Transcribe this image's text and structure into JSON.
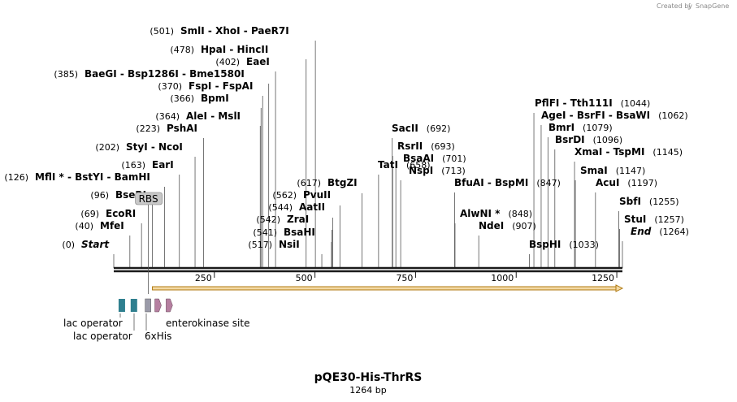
{
  "credit": {
    "prefix": "Created by",
    "brand": "SnapGene"
  },
  "sequence": {
    "name": "pQE30-His-ThrRS",
    "length_label": "1264 bp",
    "length": 1264
  },
  "colors": {
    "backbone": "#1a1a1a",
    "orf_fill": "#f3d9a4",
    "orf_stroke": "#b07a10",
    "lac_operator": "#2f7f8f",
    "his_tag": "#9a9aa8",
    "enterokinase": "#b57fa0",
    "rbs_fill": "#c8c8c8",
    "leader": "#555555"
  },
  "axis": {
    "ticks": [
      250,
      500,
      750,
      1000,
      1250
    ]
  },
  "features": [
    {
      "name": "lac operator",
      "label": "lac operator",
      "start": 12,
      "end": 28,
      "type": "lac_operator"
    },
    {
      "name": "lac operator",
      "label": "lac operator",
      "start": 42,
      "end": 58,
      "type": "lac_operator"
    },
    {
      "name": "6xHis",
      "label": "6xHis",
      "start": 78,
      "end": 90,
      "type": "his_tag"
    },
    {
      "name": "RBS",
      "label": "RBS",
      "start": 82,
      "end": 90,
      "type": "rbs"
    },
    {
      "name": "ORF",
      "label": "",
      "start": 96,
      "end": 1264,
      "type": "orf"
    },
    {
      "name": "enterokinase site",
      "label": "",
      "start": 102,
      "end": 112,
      "type": "enterokinase"
    },
    {
      "name": "enterokinase site",
      "label": "enterokinase site",
      "start": 130,
      "end": 140,
      "type": "enterokinase"
    }
  ],
  "sites": [
    {
      "parts": [
        {
          "t": "Start",
          "i": true
        }
      ],
      "pos_text": "(0)",
      "pos": 0,
      "before": true
    },
    {
      "parts": [
        {
          "t": "MfeI"
        }
      ],
      "pos_text": "(40)",
      "pos": 40,
      "before": true
    },
    {
      "parts": [
        {
          "t": "EcoRI"
        }
      ],
      "pos_text": "(69)",
      "pos": 69,
      "before": true
    },
    {
      "parts": [
        {
          "t": "BseRI"
        }
      ],
      "pos_text": "(96)",
      "pos": 96,
      "before": true
    },
    {
      "parts": [
        {
          "t": "MflI *"
        },
        {
          "t": " - "
        },
        {
          "t": "BstYI"
        },
        {
          "t": " - "
        },
        {
          "t": "BamHI"
        }
      ],
      "pos_text": "(126)",
      "pos": 126,
      "before": true
    },
    {
      "parts": [
        {
          "t": "EarI"
        }
      ],
      "pos_text": "(163)",
      "pos": 163,
      "before": true
    },
    {
      "parts": [
        {
          "t": "StyI"
        },
        {
          "t": " - "
        },
        {
          "t": "NcoI"
        }
      ],
      "pos_text": "(202)",
      "pos": 202,
      "before": true
    },
    {
      "parts": [
        {
          "t": "PshAI"
        }
      ],
      "pos_text": "(223)",
      "pos": 223,
      "before": true
    },
    {
      "parts": [
        {
          "t": "AleI"
        },
        {
          "t": " - "
        },
        {
          "t": "MslI"
        }
      ],
      "pos_text": "(364)",
      "pos": 364,
      "before": true
    },
    {
      "parts": [
        {
          "t": "BpmI"
        }
      ],
      "pos_text": "(366)",
      "pos": 366,
      "before": true
    },
    {
      "parts": [
        {
          "t": "FspI"
        },
        {
          "t": " - "
        },
        {
          "t": "FspAI"
        }
      ],
      "pos_text": "(370)",
      "pos": 370,
      "before": true
    },
    {
      "parts": [
        {
          "t": "BaeGI"
        },
        {
          "t": " - "
        },
        {
          "t": "Bsp1286I"
        },
        {
          "t": " - "
        },
        {
          "t": "Bme1580I"
        }
      ],
      "pos_text": "(385)",
      "pos": 385,
      "before": true
    },
    {
      "parts": [
        {
          "t": "EaeI"
        }
      ],
      "pos_text": "(402)",
      "pos": 402,
      "before": true
    },
    {
      "parts": [
        {
          "t": "HpaI"
        },
        {
          "t": " - "
        },
        {
          "t": "HincII"
        }
      ],
      "pos_text": "(478)",
      "pos": 478,
      "before": true
    },
    {
      "parts": [
        {
          "t": "SmlI"
        },
        {
          "t": " - "
        },
        {
          "t": "XhoI"
        },
        {
          "t": " - "
        },
        {
          "t": "PaeR7I"
        }
      ],
      "pos_text": "(501)",
      "pos": 501,
      "before": true
    },
    {
      "parts": [
        {
          "t": "NsiI"
        }
      ],
      "pos_text": "(517)",
      "pos": 517,
      "before": true
    },
    {
      "parts": [
        {
          "t": "BsaHI"
        }
      ],
      "pos_text": "(541)",
      "pos": 541,
      "before": true
    },
    {
      "parts": [
        {
          "t": "ZraI"
        }
      ],
      "pos_text": "(542)",
      "pos": 542,
      "before": true
    },
    {
      "parts": [
        {
          "t": "AatII"
        }
      ],
      "pos_text": "(544)",
      "pos": 544,
      "before": true
    },
    {
      "parts": [
        {
          "t": "PvuII"
        }
      ],
      "pos_text": "(562)",
      "pos": 562,
      "before": true
    },
    {
      "parts": [
        {
          "t": "BtgZI"
        }
      ],
      "pos_text": "(617)",
      "pos": 617,
      "before": true
    },
    {
      "parts": [
        {
          "t": "TatI"
        }
      ],
      "pos_text": "(658)",
      "pos": 658,
      "before": false
    },
    {
      "parts": [
        {
          "t": "SacII"
        }
      ],
      "pos_text": "(692)",
      "pos": 692,
      "before": false
    },
    {
      "parts": [
        {
          "t": "RsrII"
        }
      ],
      "pos_text": "(693)",
      "pos": 693,
      "before": false
    },
    {
      "parts": [
        {
          "t": "BsaAI"
        }
      ],
      "pos_text": "(701)",
      "pos": 701,
      "before": false
    },
    {
      "parts": [
        {
          "t": "NspI"
        }
      ],
      "pos_text": "(713)",
      "pos": 713,
      "before": false
    },
    {
      "parts": [
        {
          "t": "BfuAI"
        },
        {
          "t": " - "
        },
        {
          "t": "BspMI"
        }
      ],
      "pos_text": "(847)",
      "pos": 847,
      "before": false
    },
    {
      "parts": [
        {
          "t": "AlwNI *"
        }
      ],
      "pos_text": "(848)",
      "pos": 848,
      "before": false
    },
    {
      "parts": [
        {
          "t": "NdeI"
        }
      ],
      "pos_text": "(907)",
      "pos": 907,
      "before": false
    },
    {
      "parts": [
        {
          "t": "BspHI"
        }
      ],
      "pos_text": "(1033)",
      "pos": 1033,
      "before": false
    },
    {
      "parts": [
        {
          "t": "PflFI"
        },
        {
          "t": " - "
        },
        {
          "t": "Tth111I"
        }
      ],
      "pos_text": "(1044)",
      "pos": 1044,
      "before": false
    },
    {
      "parts": [
        {
          "t": "AgeI"
        },
        {
          "t": " - "
        },
        {
          "t": "BsrFI"
        },
        {
          "t": " - "
        },
        {
          "t": "BsaWI"
        }
      ],
      "pos_text": "(1062)",
      "pos": 1062,
      "before": false
    },
    {
      "parts": [
        {
          "t": "BmrI"
        }
      ],
      "pos_text": "(1079)",
      "pos": 1079,
      "before": false
    },
    {
      "parts": [
        {
          "t": "BsrDI"
        }
      ],
      "pos_text": "(1096)",
      "pos": 1096,
      "before": false
    },
    {
      "parts": [
        {
          "t": "XmaI"
        },
        {
          "t": " - "
        },
        {
          "t": "TspMI"
        }
      ],
      "pos_text": "(1145)",
      "pos": 1145,
      "before": false
    },
    {
      "parts": [
        {
          "t": "SmaI"
        }
      ],
      "pos_text": "(1147)",
      "pos": 1147,
      "before": false
    },
    {
      "parts": [
        {
          "t": "AcuI"
        }
      ],
      "pos_text": "(1197)",
      "pos": 1197,
      "before": false
    },
    {
      "parts": [
        {
          "t": "SbfI"
        }
      ],
      "pos_text": "(1255)",
      "pos": 1255,
      "before": false
    },
    {
      "parts": [
        {
          "t": "StuI"
        }
      ],
      "pos_text": "(1257)",
      "pos": 1257,
      "before": false
    },
    {
      "parts": [
        {
          "t": "End",
          "i": true
        }
      ],
      "pos_text": "(1264)",
      "pos": 1264,
      "before": false
    }
  ]
}
